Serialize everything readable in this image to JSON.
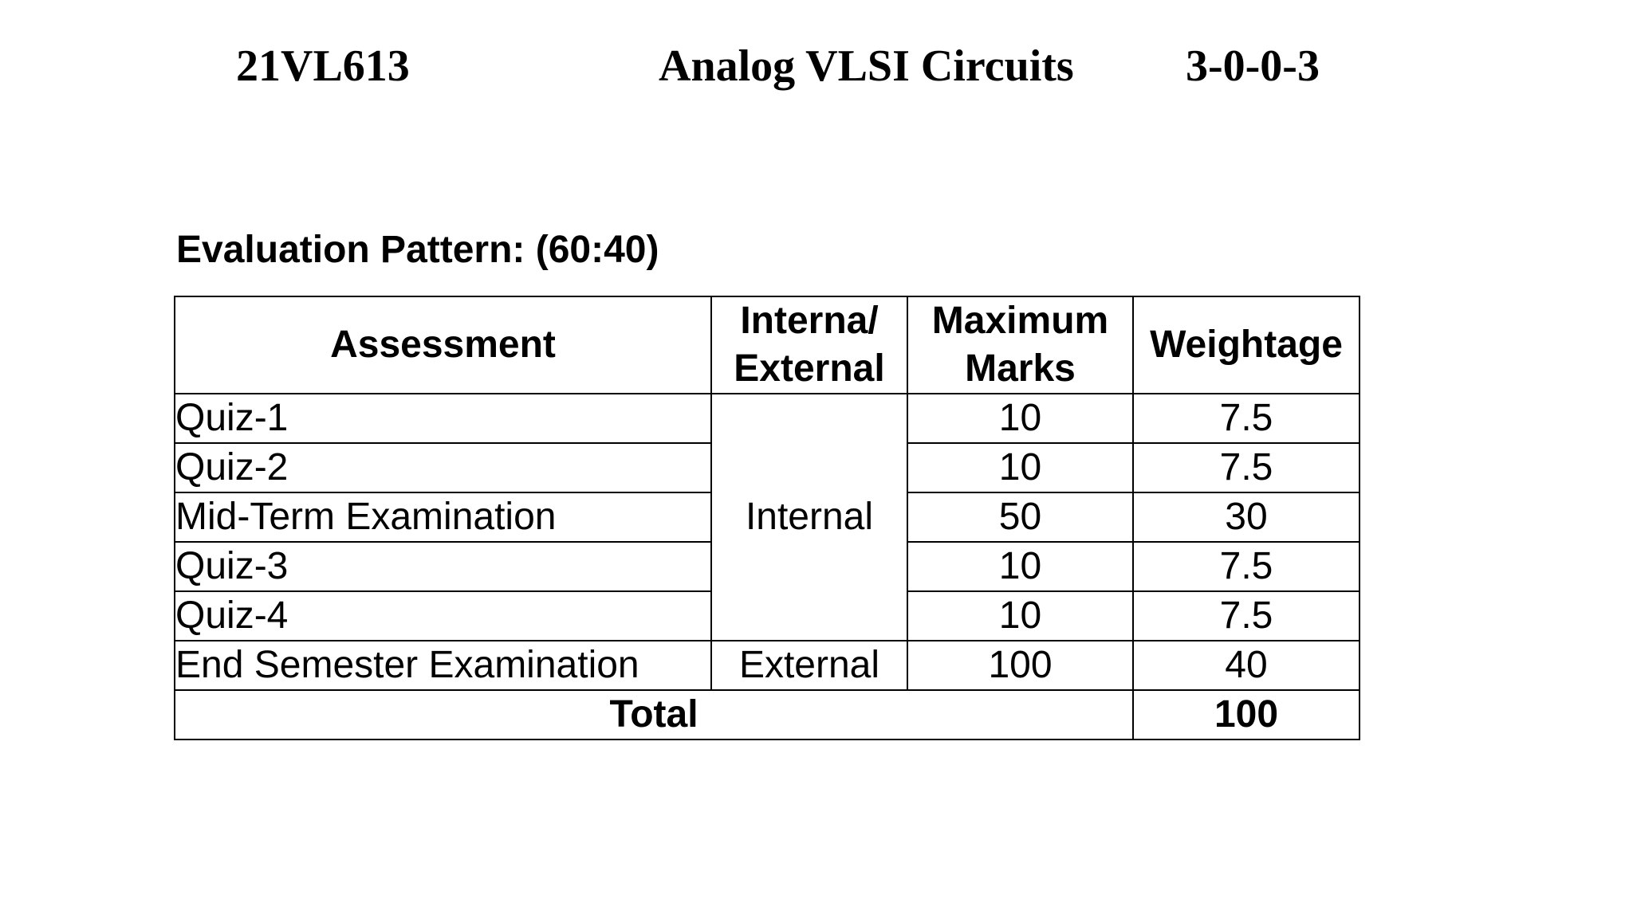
{
  "header": {
    "course_code": "21VL613",
    "course_title": "Analog VLSI Circuits",
    "credits": "3-0-0-3"
  },
  "section_title": "Evaluation Pattern: (60:40)",
  "table": {
    "columns": [
      "Assessment",
      "Interna/ External",
      "Maximum Marks",
      "Weightage"
    ],
    "column_lines": {
      "internal_external": [
        "Interna/",
        "External"
      ],
      "maximum_marks": [
        "Maximum",
        "Marks"
      ]
    },
    "rows": [
      {
        "assessment": "Quiz-1",
        "max_marks": "10",
        "weightage": "7.5"
      },
      {
        "assessment": "Quiz-2",
        "max_marks": "10",
        "weightage": "7.5"
      },
      {
        "assessment": "Mid-Term Examination",
        "max_marks": "50",
        "weightage": "30"
      },
      {
        "assessment": "Quiz-3",
        "max_marks": "10",
        "weightage": "7.5"
      },
      {
        "assessment": "Quiz-4",
        "max_marks": "10",
        "weightage": "7.5"
      },
      {
        "assessment": "End Semester Examination",
        "max_marks": "100",
        "weightage": "40"
      }
    ],
    "internal_label": "Internal",
    "external_label": "External",
    "total_label": "Total",
    "total_value": "100"
  }
}
